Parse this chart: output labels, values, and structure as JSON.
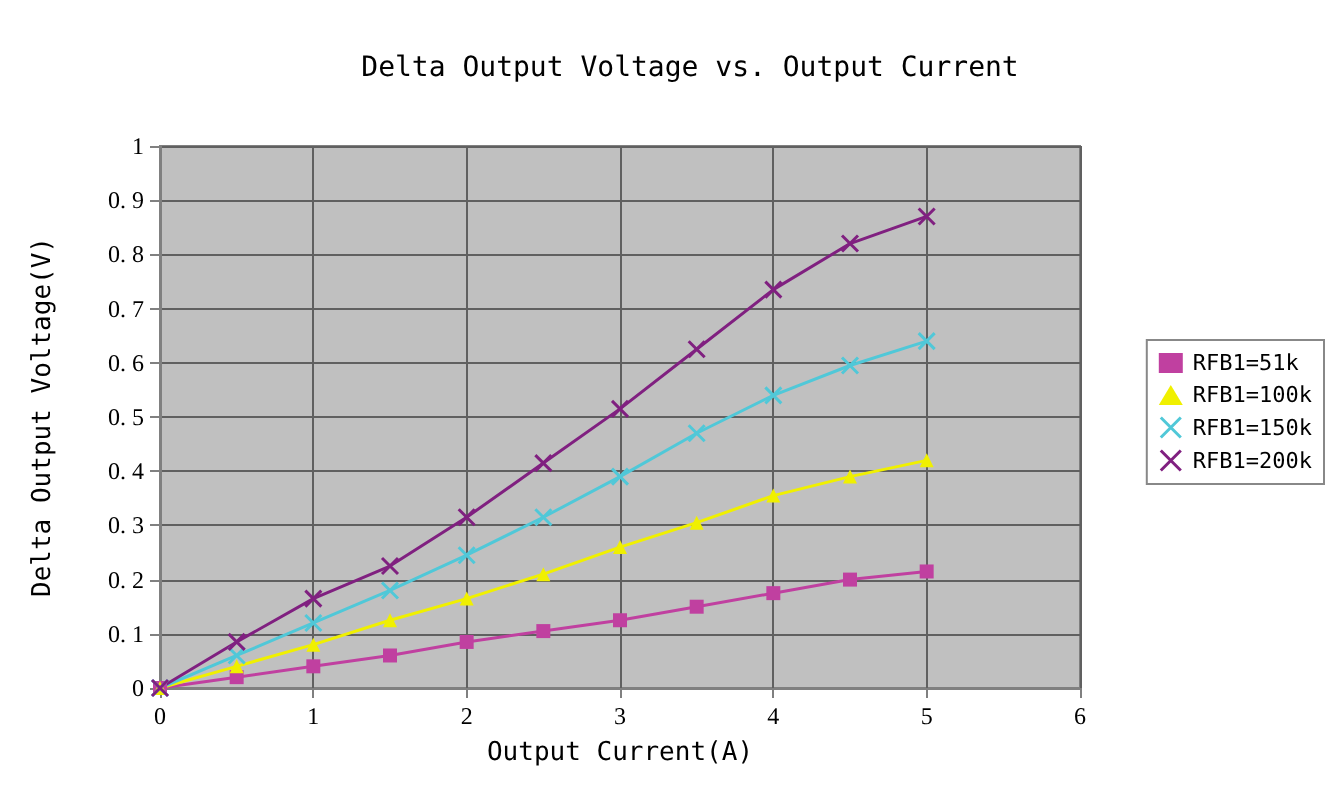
{
  "chart_data": {
    "type": "line",
    "title": "Delta Output Voltage vs. Output Current",
    "xlabel": "Output Current(A)",
    "ylabel": "Delta Output Voltage(V)",
    "x": [
      0,
      0.5,
      1,
      1.5,
      2,
      2.5,
      3,
      3.5,
      4,
      4.5,
      5
    ],
    "series": [
      {
        "name": "RFB1=51k",
        "color": "#c040a0",
        "marker": "square",
        "values": [
          0,
          0.02,
          0.04,
          0.06,
          0.085,
          0.105,
          0.125,
          0.15,
          0.175,
          0.2,
          0.215
        ]
      },
      {
        "name": "RFB1=100k",
        "color": "#f0f000",
        "marker": "triangle",
        "values": [
          0,
          0.04,
          0.08,
          0.125,
          0.165,
          0.21,
          0.26,
          0.305,
          0.355,
          0.39,
          0.42
        ]
      },
      {
        "name": "RFB1=150k",
        "color": "#50c8d8",
        "marker": "cross",
        "values": [
          0,
          0.06,
          0.12,
          0.18,
          0.245,
          0.315,
          0.39,
          0.47,
          0.54,
          0.595,
          0.64
        ]
      },
      {
        "name": "RFB1=200k",
        "color": "#802080",
        "marker": "cross",
        "values": [
          0,
          0.085,
          0.165,
          0.225,
          0.315,
          0.415,
          0.515,
          0.625,
          0.735,
          0.82,
          0.87
        ]
      }
    ],
    "xlim": [
      0,
      6
    ],
    "xticks": [
      0,
      1,
      2,
      3,
      4,
      5,
      6
    ],
    "ylim": [
      0,
      1
    ],
    "yticks": [
      0,
      0.1,
      0.2,
      0.3,
      0.4,
      0.5,
      0.6,
      0.7,
      0.8,
      0.9,
      1
    ],
    "grid": true,
    "legend": "right",
    "line_style": "solid"
  }
}
